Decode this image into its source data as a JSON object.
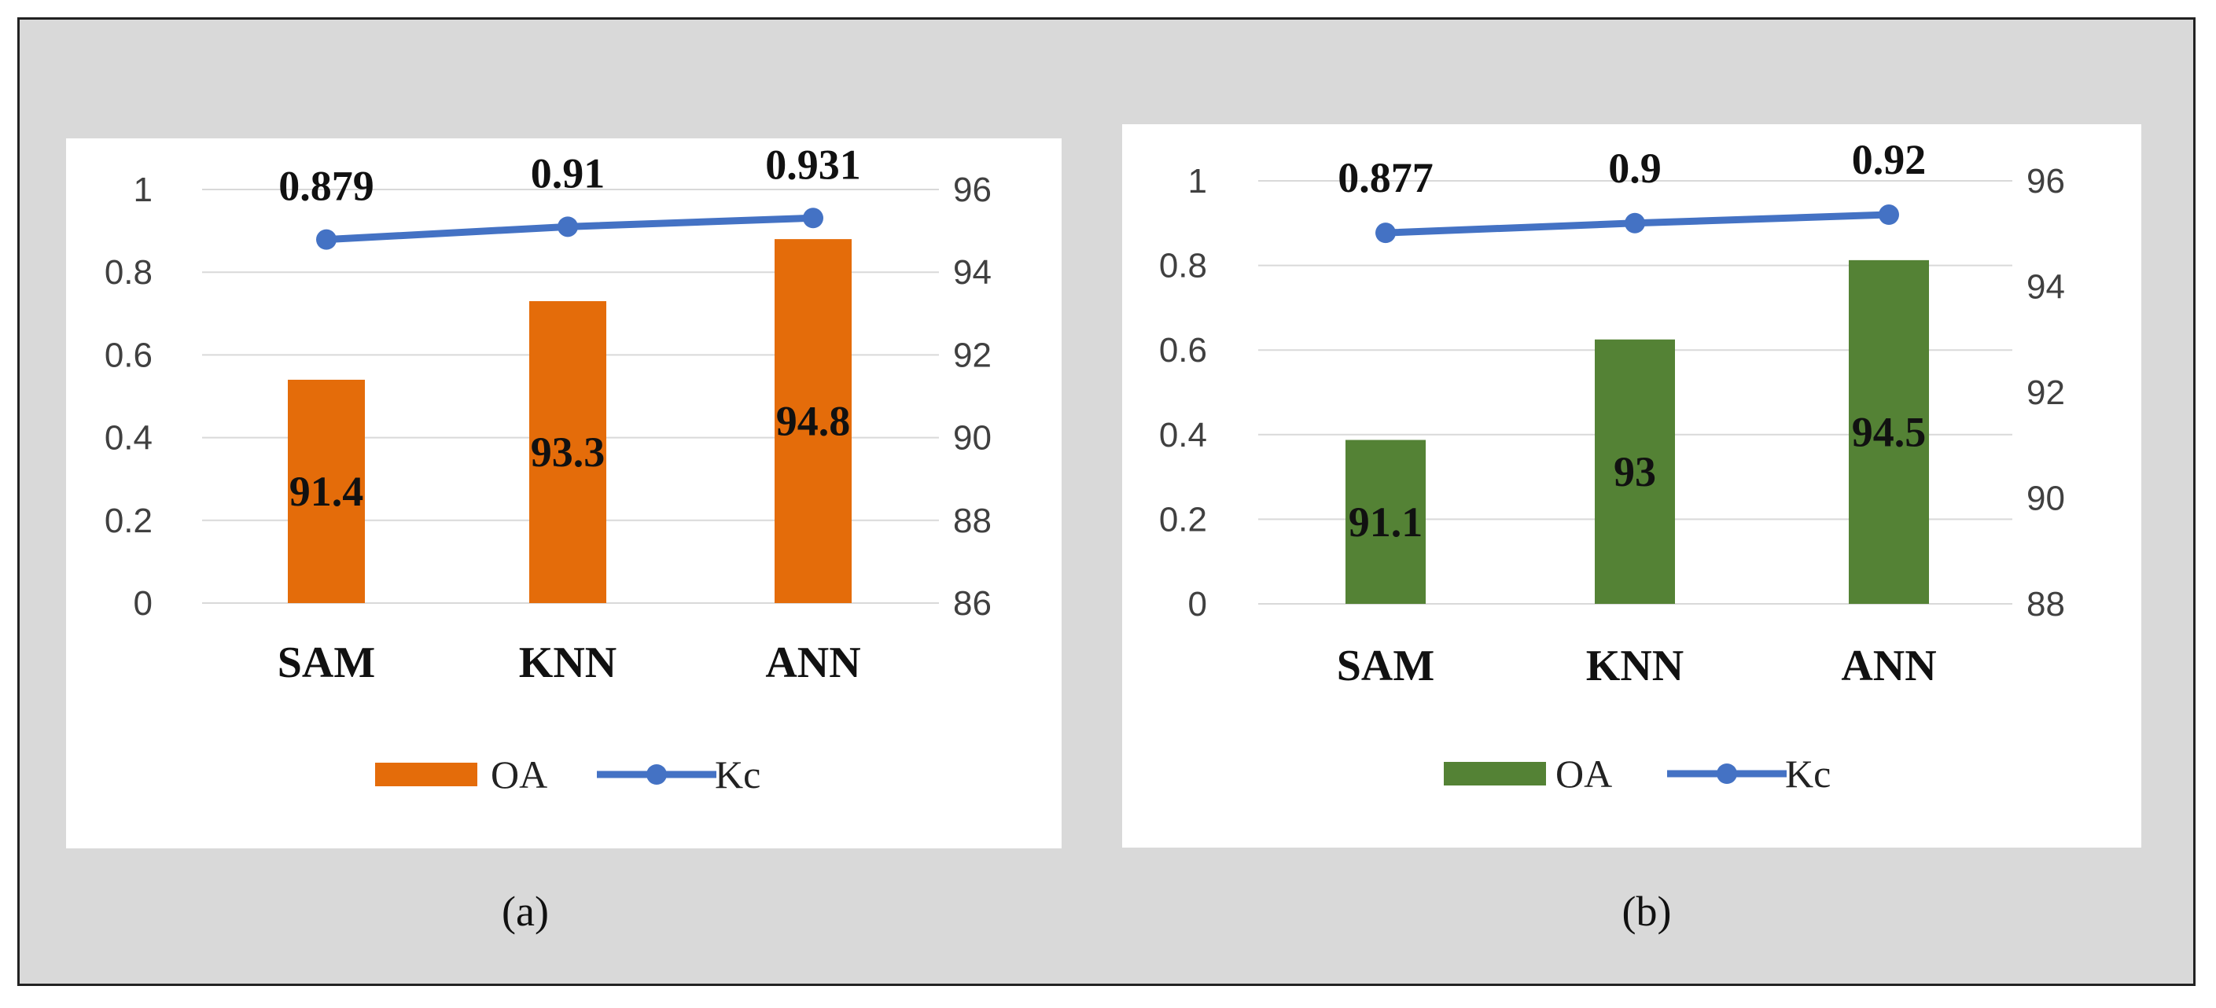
{
  "chart_data": [
    {
      "type": "bar",
      "caption": "(a)",
      "categories": [
        "SAM",
        "KNN",
        "ANN"
      ],
      "left_axis": {
        "min": 0,
        "max": 1,
        "step": 0.2,
        "ticks": [
          "0",
          "0.2",
          "0.4",
          "0.6",
          "0.8",
          "1"
        ]
      },
      "right_axis": {
        "min": 86,
        "max": 96,
        "step": 2,
        "ticks": [
          "86",
          "88",
          "90",
          "92",
          "94",
          "96"
        ]
      },
      "grid": true,
      "legend_position": "bottom",
      "series": [
        {
          "name": "OA",
          "kind": "bar",
          "axis": "right",
          "color": "#e46c0a",
          "values": [
            91.4,
            93.3,
            94.8
          ],
          "labels": [
            "91.4",
            "93.3",
            "94.8"
          ]
        },
        {
          "name": "Kc",
          "kind": "line",
          "axis": "left",
          "color": "#4472c4",
          "values": [
            0.879,
            0.91,
            0.931
          ],
          "labels": [
            "0.879",
            "0.91",
            "0.931"
          ]
        }
      ]
    },
    {
      "type": "bar",
      "caption": "(b)",
      "categories": [
        "SAM",
        "KNN",
        "ANN"
      ],
      "left_axis": {
        "min": 0,
        "max": 1,
        "step": 0.2,
        "ticks": [
          "0",
          "0.2",
          "0.4",
          "0.6",
          "0.8",
          "1"
        ]
      },
      "right_axis": {
        "min": 88,
        "max": 96,
        "step": 2,
        "ticks": [
          "88",
          "90",
          "92",
          "94",
          "96"
        ]
      },
      "grid": true,
      "legend_position": "bottom",
      "series": [
        {
          "name": "OA",
          "kind": "bar",
          "axis": "right",
          "color": "#548235",
          "values": [
            91.1,
            93,
            94.5
          ],
          "labels": [
            "91.1",
            "93",
            "94.5"
          ]
        },
        {
          "name": "Kc",
          "kind": "line",
          "axis": "left",
          "color": "#4472c4",
          "values": [
            0.877,
            0.9,
            0.92
          ],
          "labels": [
            "0.877",
            "0.9",
            "0.92"
          ]
        }
      ]
    }
  ]
}
